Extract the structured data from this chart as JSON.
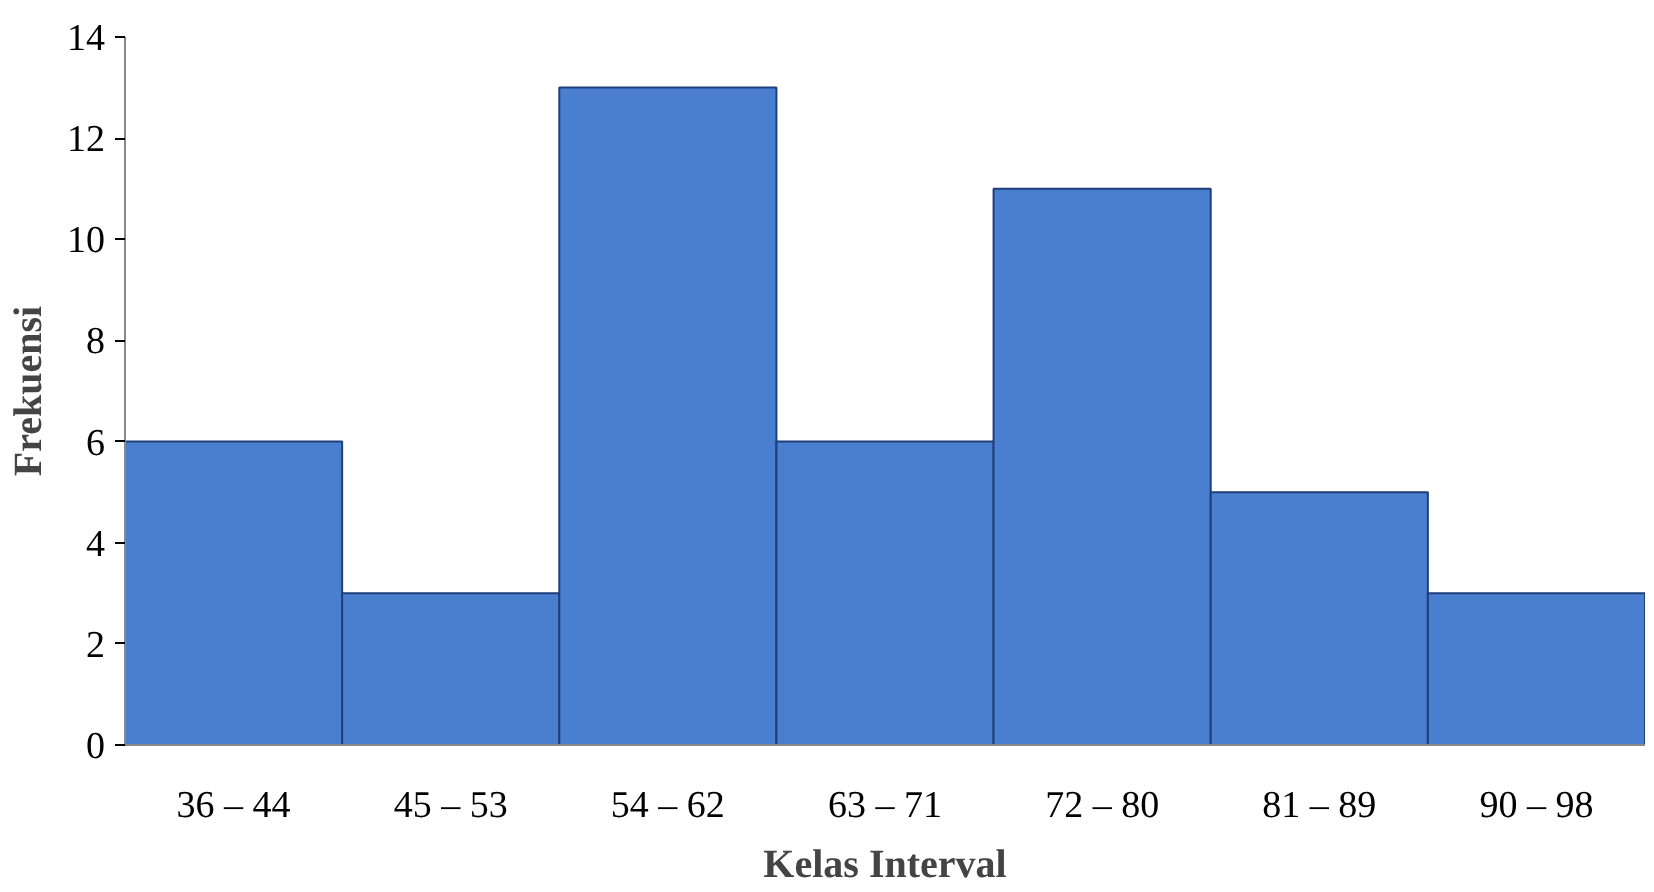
{
  "chart_data": {
    "type": "bar",
    "xlabel": "Kelas Interval",
    "ylabel": "Frekuensi",
    "categories": [
      "36 – 44",
      "45 – 53",
      "54 – 62",
      "63 – 71",
      "72 – 80",
      "81 – 89",
      "90 – 98"
    ],
    "values": [
      6,
      3,
      13,
      6,
      11,
      5,
      3
    ],
    "color": "#4a7fd0",
    "ylim": [
      0,
      14
    ],
    "yticks": [
      0,
      2,
      4,
      6,
      8,
      10,
      12,
      14
    ],
    "grid": false
  }
}
